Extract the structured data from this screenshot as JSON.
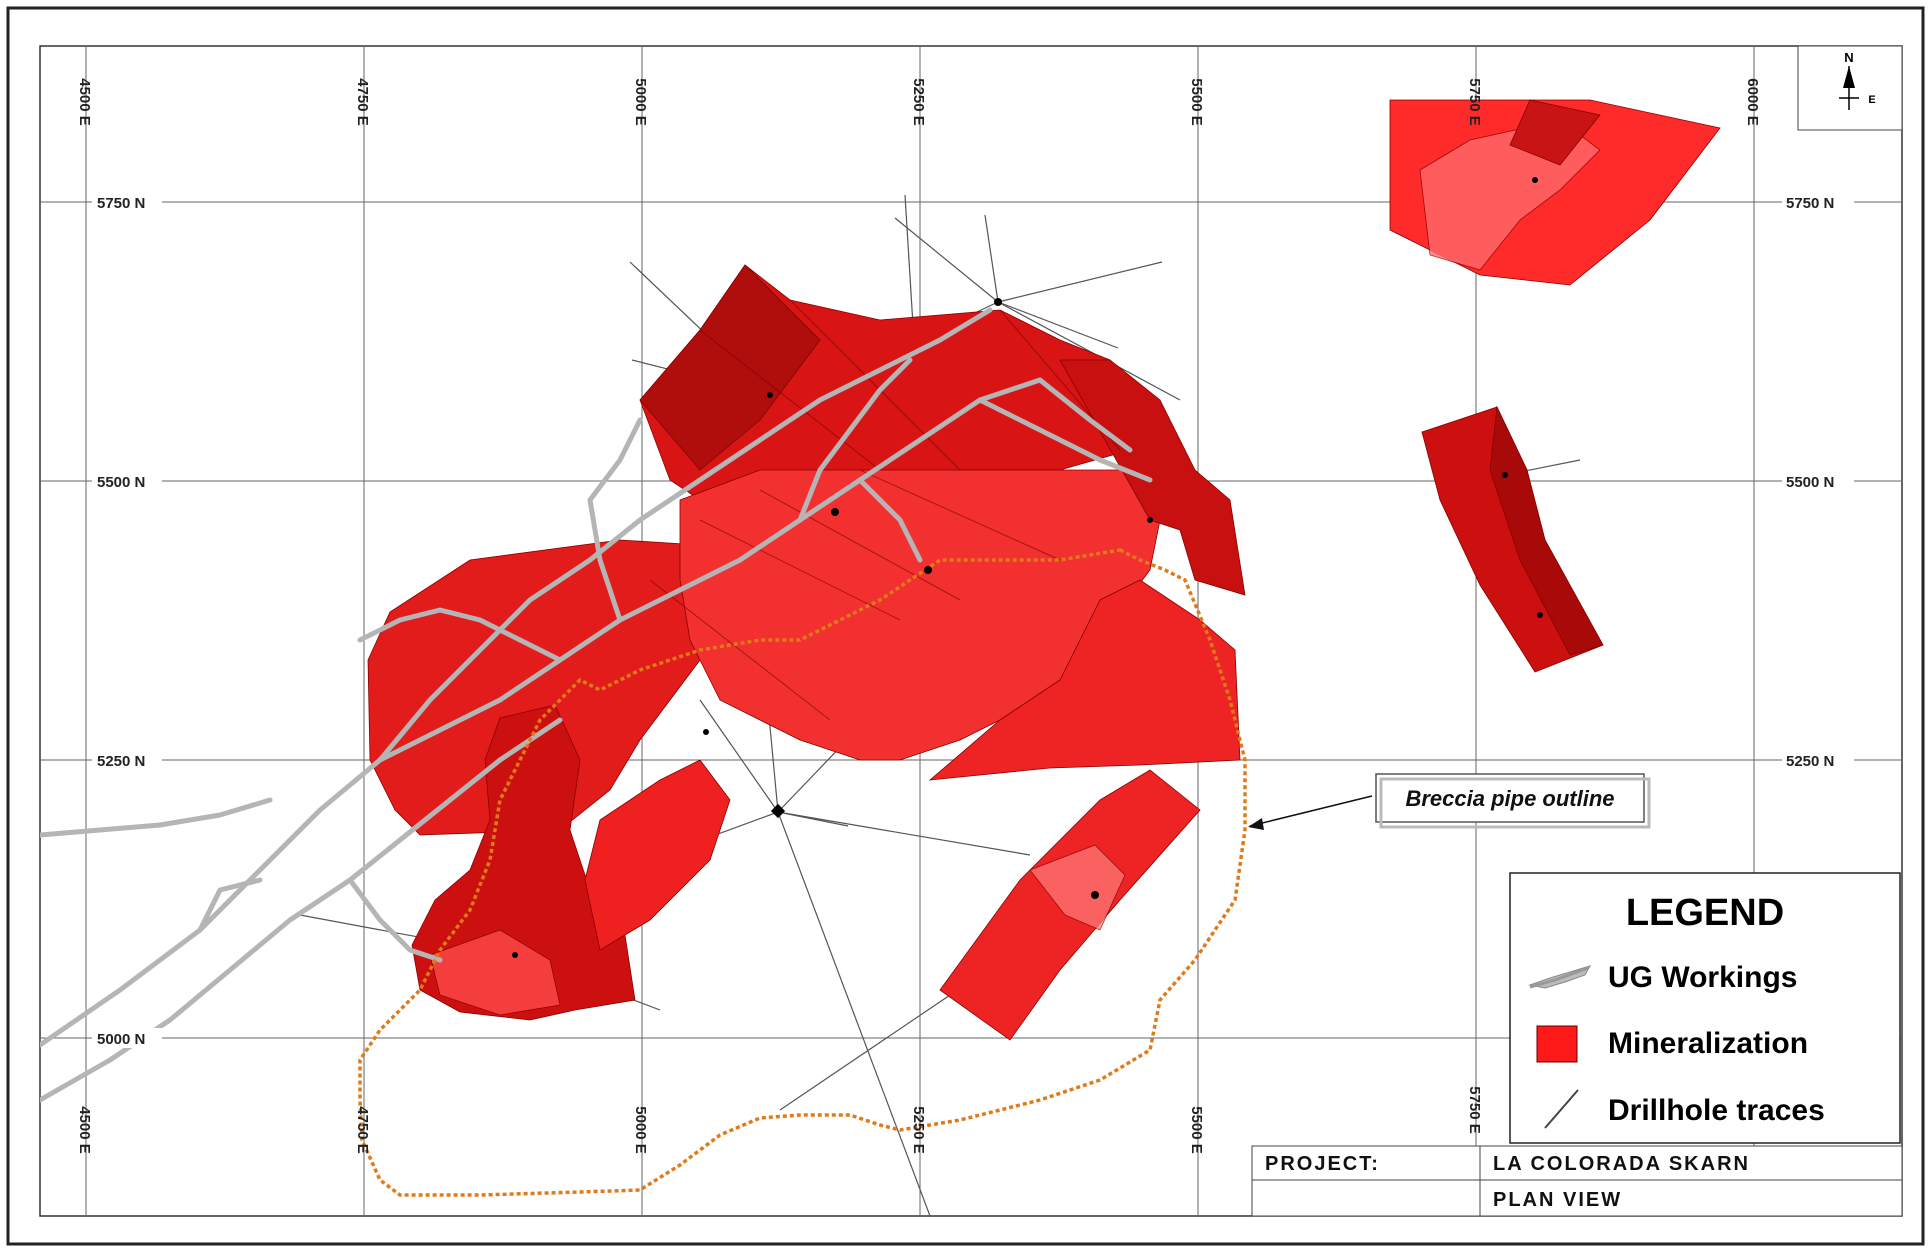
{
  "map": {
    "easting_ticks": [
      "4500 E",
      "4750 E",
      "5000 E",
      "5250 E",
      "5500 E",
      "5750 E",
      "6000 E"
    ],
    "northing_ticks": [
      "5750 N",
      "5500 N",
      "5250 N",
      "5000 N"
    ],
    "north_arrow": {
      "north_label": "N",
      "east_label": "E"
    }
  },
  "callout": {
    "label": "Breccia pipe outline"
  },
  "legend": {
    "title": "LEGEND",
    "items": [
      {
        "label": "UG Workings",
        "icon": "ug-workings-icon"
      },
      {
        "label": "Mineralization",
        "icon": "mineralization-swatch",
        "color": "#ff1a1a"
      },
      {
        "label": "Drillhole traces",
        "icon": "drillhole-icon"
      }
    ]
  },
  "title_block": {
    "project_label": "PROJECT:",
    "project_name": "LA COLORADA SKARN",
    "view_name": "PLAN VIEW"
  },
  "colors": {
    "mineralization": "#ff2020",
    "mineralization_dark": "#a00000",
    "breccia_outline": "#e07a1a",
    "ug_workings": "#b8b8b8"
  }
}
